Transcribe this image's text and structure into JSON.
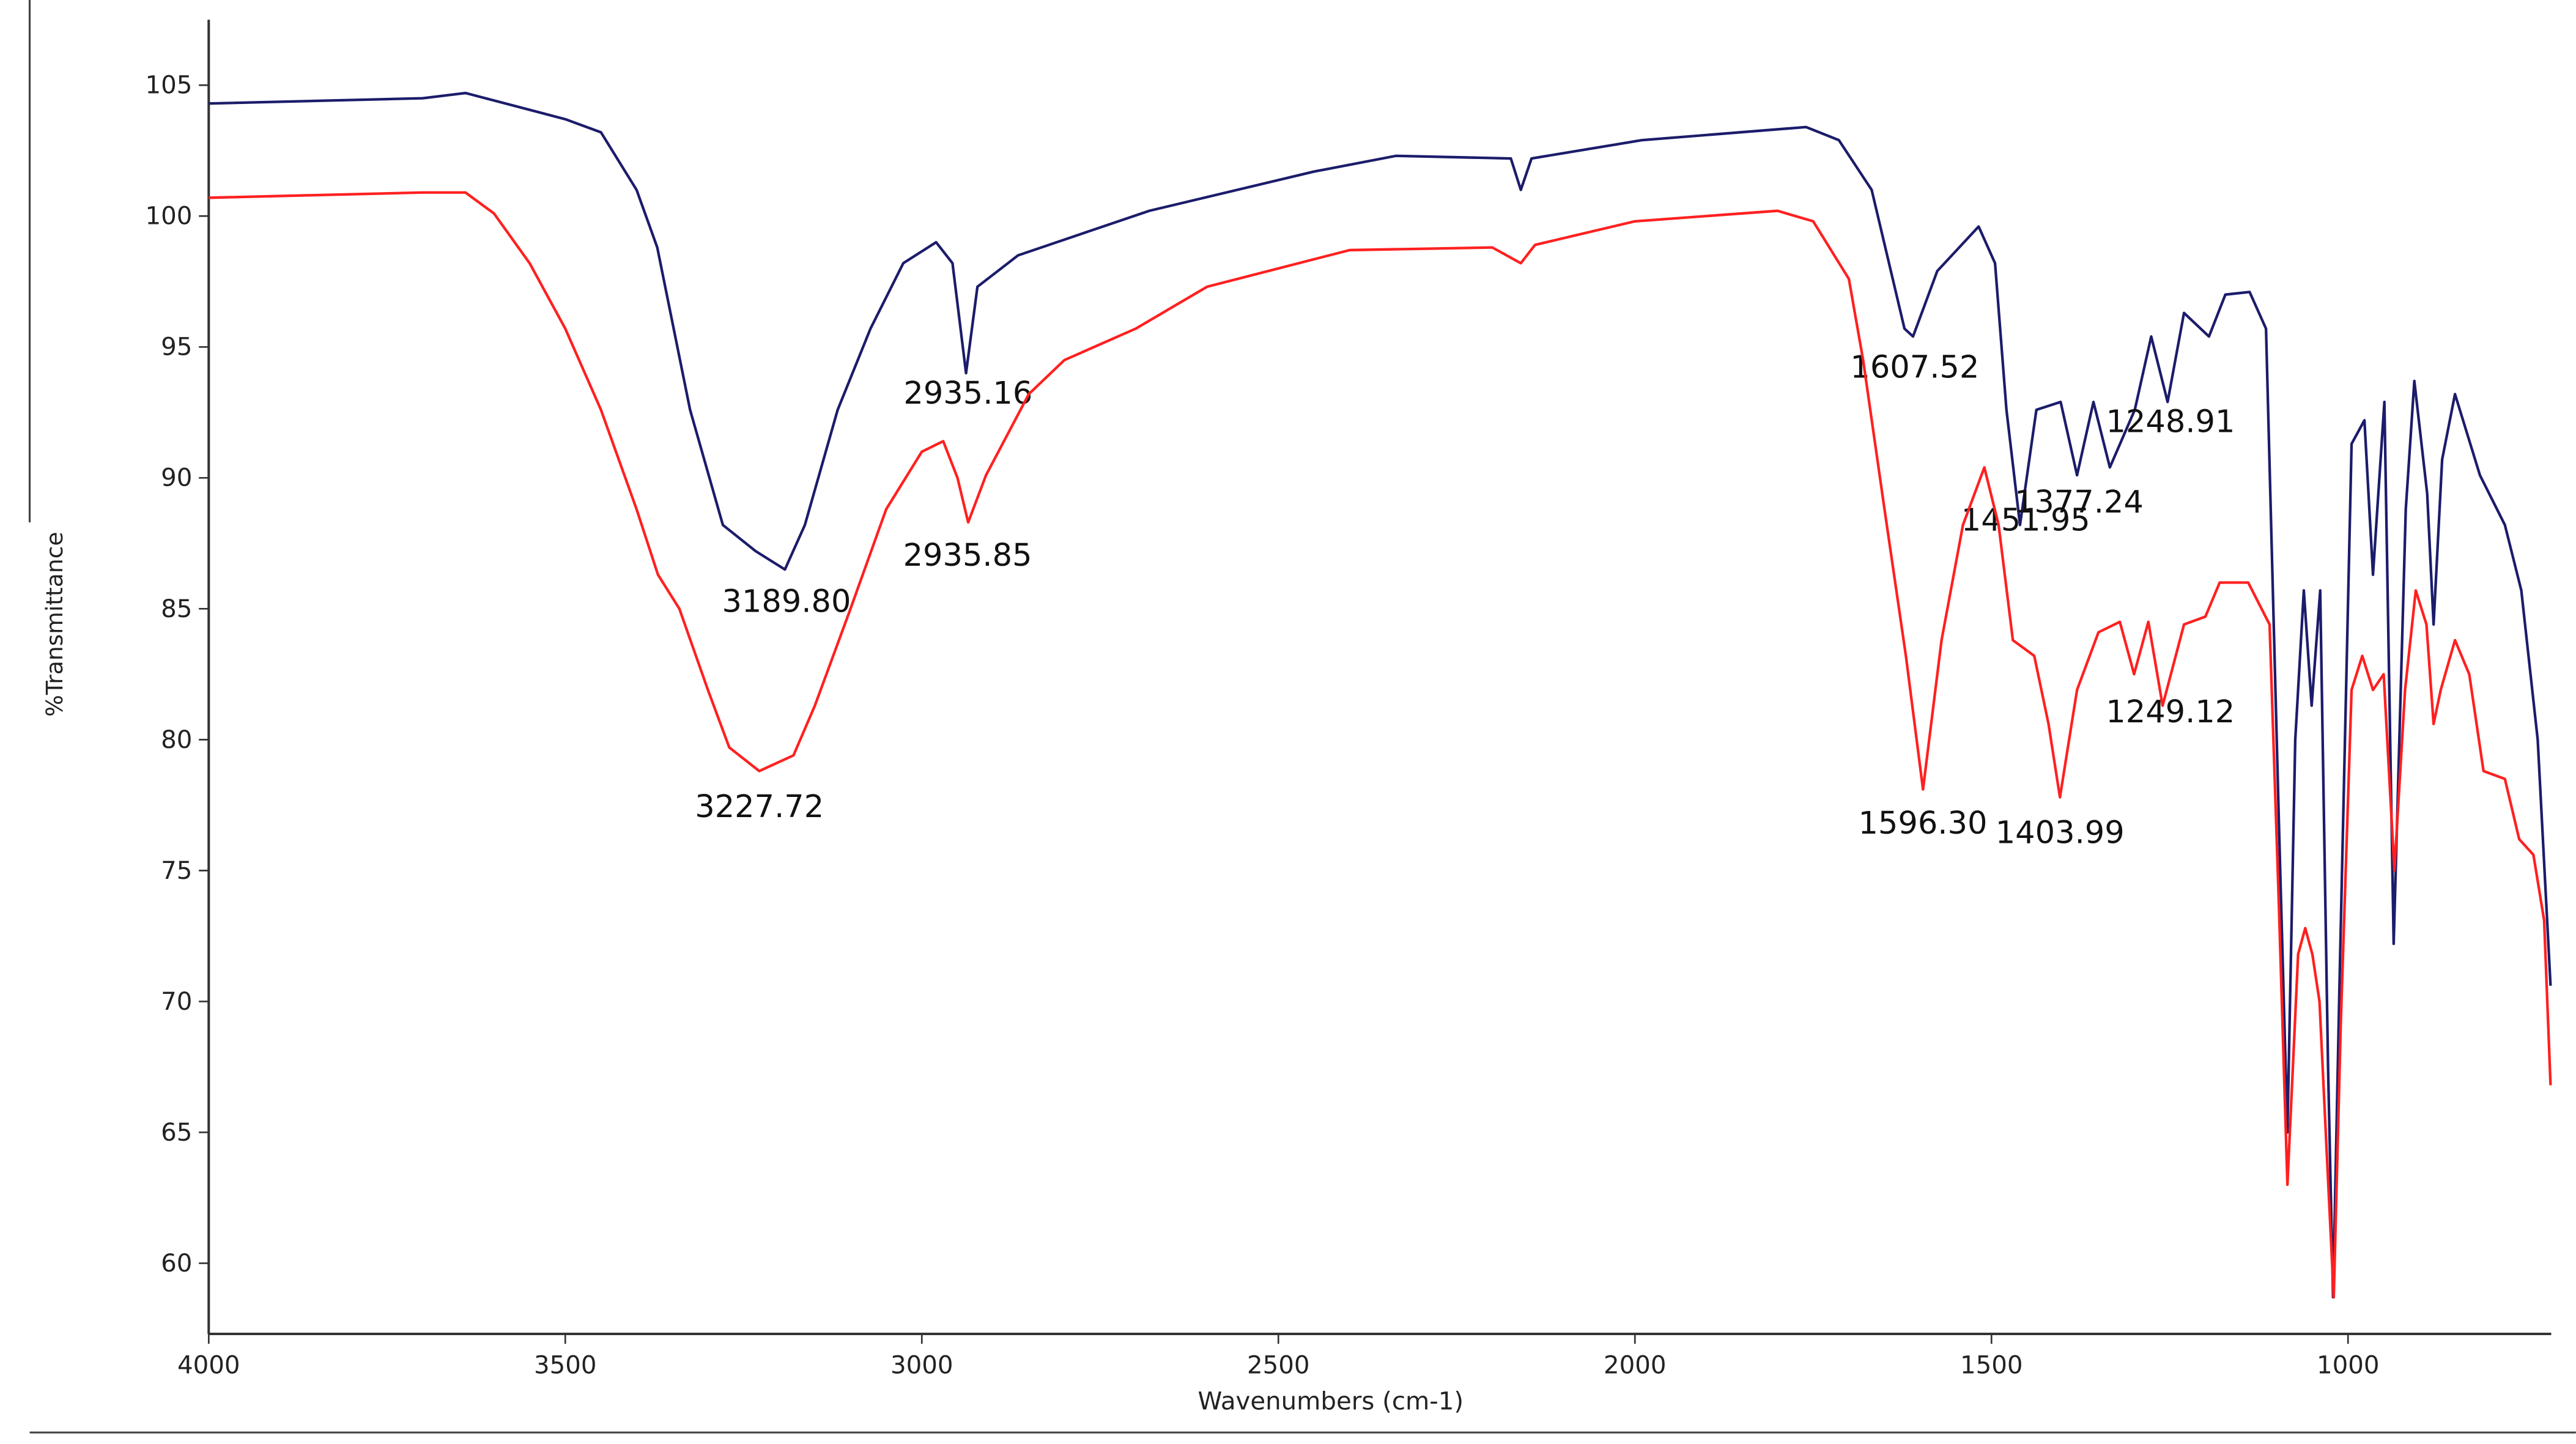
{
  "chart_data": {
    "type": "line",
    "xlabel": "Wavenumbers (cm-1)",
    "ylabel": "%Transmittance",
    "xlim": [
      4000,
      715
    ],
    "ylim": [
      57.3,
      107.5
    ],
    "xticks": [
      4000,
      3500,
      3000,
      2500,
      2000,
      1500,
      1000
    ],
    "yticks": [
      60,
      65,
      70,
      75,
      80,
      85,
      90,
      95,
      100,
      105
    ],
    "series": [
      {
        "color": "#1c1c6b",
        "x": [
          4000,
          3700,
          3640,
          3500,
          3450,
          3400,
          3371,
          3325,
          3279,
          3233,
          3192,
          3164,
          3118,
          3072,
          3026,
          2980,
          2957,
          2938,
          2922,
          2865,
          2681,
          2450,
          2335,
          2174,
          2160,
          2145,
          1990,
          1760,
          1714,
          1668,
          1622,
          1610,
          1576,
          1518,
          1495,
          1479,
          1460,
          1437,
          1403,
          1380,
          1357,
          1334,
          1299,
          1276,
          1253,
          1230,
          1195,
          1172,
          1138,
          1115,
          1097,
          1085,
          1074,
          1062,
          1051,
          1039,
          1028,
          1021,
          1012,
          995,
          977,
          965,
          949,
          936,
          919,
          907,
          889,
          880,
          868,
          850,
          815,
          780,
          757,
          734,
          716
        ],
        "values": [
          104.3,
          104.5,
          104.7,
          103.7,
          103.2,
          101.0,
          98.8,
          92.6,
          88.2,
          87.2,
          86.5,
          88.2,
          92.6,
          95.7,
          98.2,
          99.0,
          98.2,
          94.0,
          97.3,
          98.5,
          100.2,
          101.7,
          102.3,
          102.2,
          101.0,
          102.2,
          102.9,
          103.4,
          102.9,
          101.0,
          95.7,
          95.4,
          97.9,
          99.6,
          98.2,
          92.6,
          88.2,
          92.6,
          92.9,
          90.1,
          92.9,
          90.4,
          92.6,
          95.4,
          92.9,
          96.3,
          95.4,
          97.0,
          97.1,
          95.7,
          76.9,
          65.0,
          80.0,
          85.7,
          81.3,
          85.7,
          67.5,
          58.7,
          70.6,
          91.3,
          92.2,
          86.3,
          92.9,
          72.2,
          88.8,
          93.7,
          89.4,
          84.4,
          90.7,
          93.2,
          90.1,
          88.2,
          85.7,
          80.0,
          70.6
        ],
        "peak_labels": [
          "3189.80",
          "2935.16",
          "1607.52",
          "1451.95",
          "1377.24",
          "1248.91"
        ]
      },
      {
        "color": "#ff2020",
        "x": [
          4000,
          3700,
          3640,
          3600,
          3550,
          3500,
          3450,
          3400,
          3370,
          3340,
          3300,
          3270,
          3228,
          3180,
          3150,
          3100,
          3050,
          3000,
          2970,
          2950,
          2935,
          2910,
          2850,
          2800,
          2700,
          2600,
          2400,
          2200,
          2160,
          2140,
          2000,
          1800,
          1750,
          1700,
          1680,
          1650,
          1620,
          1596,
          1570,
          1540,
          1510,
          1490,
          1470,
          1440,
          1420,
          1404,
          1380,
          1350,
          1320,
          1300,
          1280,
          1260,
          1230,
          1200,
          1180,
          1140,
          1110,
          1097,
          1085,
          1070,
          1060,
          1050,
          1040,
          1030,
          1020,
          1010,
          995,
          980,
          965,
          950,
          935,
          920,
          905,
          890,
          880,
          870,
          850,
          830,
          810,
          780,
          760,
          740,
          725,
          716
        ],
        "values": [
          100.7,
          100.9,
          100.9,
          100.1,
          98.2,
          95.7,
          92.6,
          88.8,
          86.3,
          85.0,
          81.9,
          79.7,
          78.8,
          79.4,
          81.3,
          85.0,
          88.8,
          91.0,
          91.4,
          90.0,
          88.3,
          90.1,
          93.2,
          94.5,
          95.7,
          97.3,
          98.7,
          98.8,
          98.2,
          98.9,
          99.8,
          100.2,
          99.8,
          97.6,
          94.5,
          88.8,
          83.2,
          78.1,
          83.8,
          88.2,
          90.4,
          88.2,
          83.8,
          83.2,
          80.6,
          77.8,
          81.9,
          84.1,
          84.5,
          82.5,
          84.5,
          81.3,
          84.4,
          84.7,
          86.0,
          86.0,
          84.4,
          73.7,
          63.0,
          71.8,
          72.8,
          71.8,
          70.0,
          64.3,
          58.7,
          69.3,
          81.9,
          83.2,
          81.9,
          82.5,
          75.0,
          81.9,
          85.7,
          84.4,
          80.6,
          81.9,
          83.8,
          82.5,
          78.8,
          78.5,
          76.2,
          75.6,
          73.1,
          66.8
        ],
        "peak_labels": [
          "3227.72",
          "2935.85",
          "1596.30",
          "1403.99",
          "1249.12"
        ]
      }
    ]
  }
}
